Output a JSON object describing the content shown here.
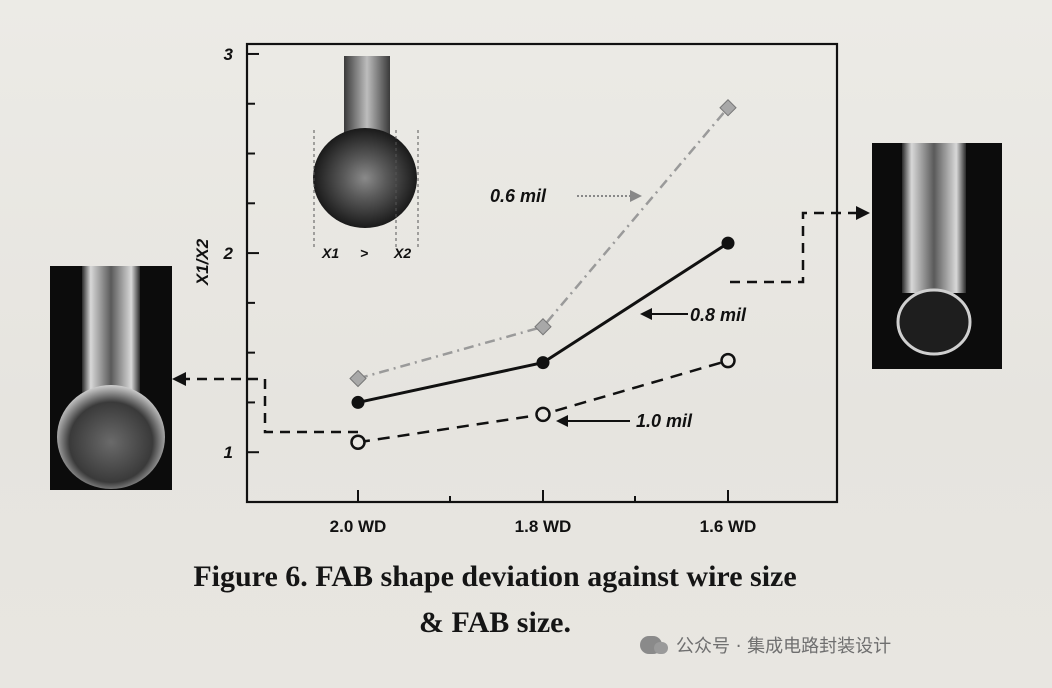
{
  "chart_data": {
    "type": "line",
    "title": "",
    "xlabel": "",
    "ylabel": "X1/X2",
    "categories": [
      "2.0 WD",
      "1.8 WD",
      "1.6 WD"
    ],
    "y_ticks": [
      "1",
      "2",
      "3"
    ],
    "ylim": [
      0.75,
      3.05
    ],
    "grid": false,
    "series": [
      {
        "name": "0.6 mil",
        "values": [
          1.37,
          1.63,
          2.73
        ],
        "style": "dash-dot",
        "marker": "diamond",
        "color": "#9a9a9a"
      },
      {
        "name": "0.8 mil",
        "values": [
          1.25,
          1.45,
          2.05
        ],
        "style": "solid",
        "marker": "filled-circle",
        "color": "#111111"
      },
      {
        "name": "1.0 mil",
        "values": [
          1.05,
          1.19,
          1.46
        ],
        "style": "dashed",
        "marker": "open-circle",
        "color": "#111111"
      }
    ],
    "inset": {
      "left_label": "X1",
      "operator": ">",
      "right_label": "X2"
    }
  },
  "caption": {
    "line1": "Figure 6. FAB shape deviation against wire size",
    "line2": "& FAB size."
  },
  "watermark": {
    "text": "公众号 · 集成电路封装设计"
  }
}
